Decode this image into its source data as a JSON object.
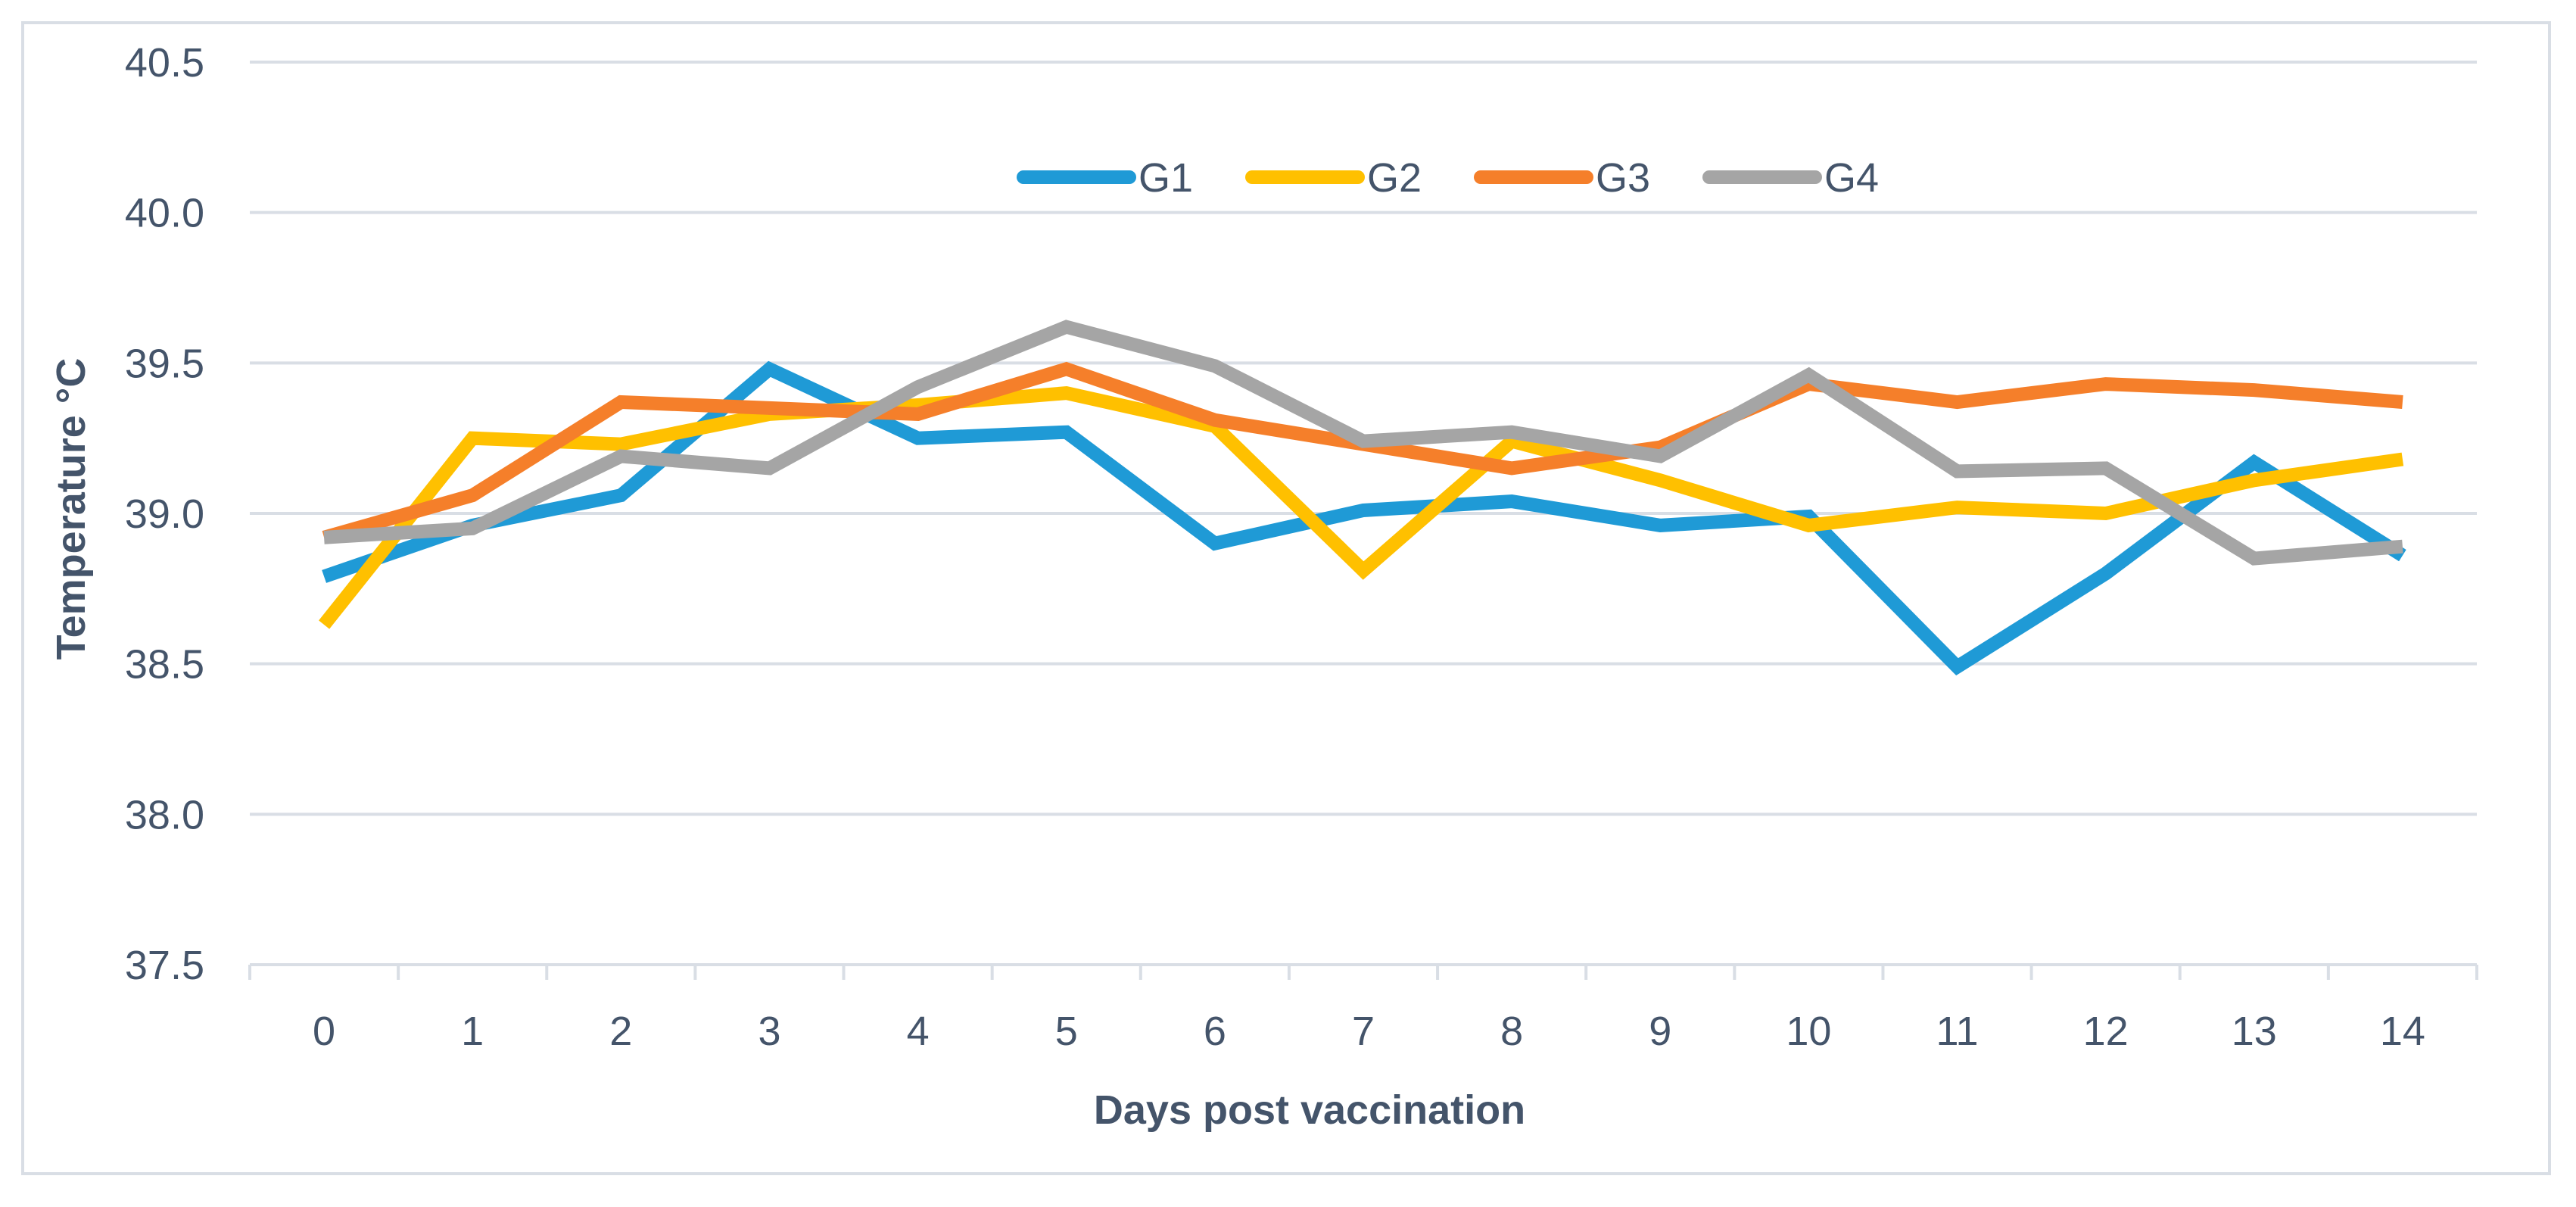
{
  "chart_data": {
    "type": "line",
    "title": "",
    "xlabel": "Days post vaccination",
    "ylabel": "Temperature °C",
    "x": [
      "0",
      "1",
      "2",
      "3",
      "4",
      "5",
      "6",
      "7",
      "8",
      "9",
      "10",
      "11",
      "12",
      "13",
      "14"
    ],
    "ylim": [
      37.5,
      40.5
    ],
    "yticks": [
      "37.5",
      "38.0",
      "38.5",
      "39.0",
      "39.5",
      "40.0",
      "40.5"
    ],
    "grid": true,
    "legend_position": "top-center",
    "series": [
      {
        "name": "G1",
        "color": "#1f9ad6",
        "values": [
          38.79,
          38.96,
          39.06,
          39.48,
          39.25,
          39.27,
          38.9,
          39.01,
          39.04,
          38.96,
          38.99,
          38.49,
          38.8,
          39.17,
          38.86
        ]
      },
      {
        "name": "G2",
        "color": "#ffc000",
        "values": [
          38.63,
          39.25,
          39.23,
          39.33,
          39.36,
          39.4,
          39.29,
          38.81,
          39.24,
          39.11,
          38.96,
          39.02,
          39.0,
          39.11,
          39.18
        ]
      },
      {
        "name": "G3",
        "color": "#f57f2a",
        "values": [
          38.92,
          39.06,
          39.37,
          39.35,
          39.33,
          39.48,
          39.31,
          39.23,
          39.15,
          39.22,
          39.43,
          39.37,
          39.43,
          39.41,
          39.37
        ]
      },
      {
        "name": "G4",
        "color": "#a5a5a5",
        "values": [
          38.92,
          38.95,
          39.19,
          39.15,
          39.42,
          39.62,
          39.49,
          39.24,
          39.27,
          39.19,
          39.46,
          39.14,
          39.15,
          38.85,
          38.89
        ]
      }
    ]
  }
}
